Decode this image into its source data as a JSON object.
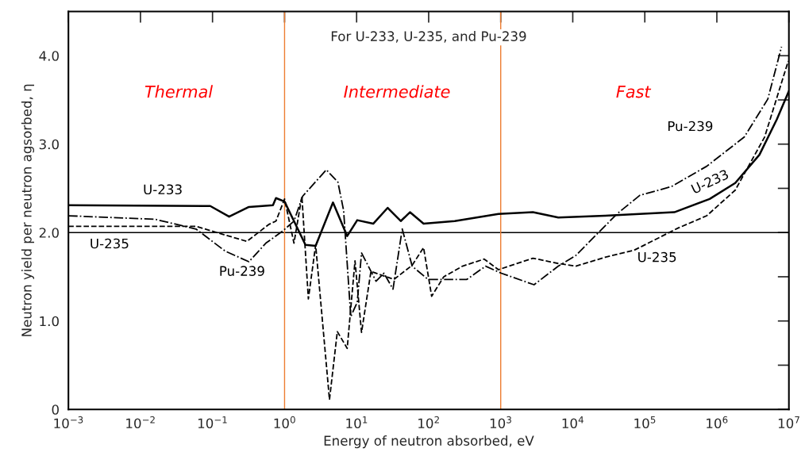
{
  "chart_data": {
    "type": "line",
    "title": "For U-233, U-235, and Pu-239",
    "xlabel": "Energy of neutron absorbed, eV",
    "ylabel": "Neutron yield per neutron agsorbed, η",
    "log": "x",
    "xlim": [
      0.001,
      10000000
    ],
    "ylim": [
      0,
      4.5
    ],
    "xticks": [
      {
        "value": 0.001,
        "label": "10$^{−3}$"
      },
      {
        "value": 0.01,
        "label": "10$^{−2}$"
      },
      {
        "value": 0.1,
        "label": "10$^{−1}$"
      },
      {
        "value": 1,
        "label": "10$^{0}$"
      },
      {
        "value": 10,
        "label": "10$^{1}$"
      },
      {
        "value": 100,
        "label": "10$^{2}$"
      },
      {
        "value": 1000,
        "label": "10$^{3}$"
      },
      {
        "value": 10000,
        "label": "10$^{4}$"
      },
      {
        "value": 100000,
        "label": "10$^{5}$"
      },
      {
        "value": 1000000,
        "label": "10$^{6}$"
      },
      {
        "value": 10000000,
        "label": "10$^{7}$"
      }
    ],
    "yticks": [
      0,
      {
        "value": 0.5,
        "label": null
      },
      {
        "value": 1.0,
        "label": "1.0"
      },
      {
        "value": 1.5,
        "label": null
      },
      {
        "value": 2.0,
        "label": "2.0"
      },
      {
        "value": 2.5,
        "label": null
      },
      {
        "value": 3.0,
        "label": "3.0"
      },
      {
        "value": 3.5,
        "label": null
      },
      {
        "value": 4.0,
        "label": "4.0"
      }
    ],
    "grid": false,
    "legend": false,
    "series": [
      {
        "color": "#000000",
        "line_style": "solid",
        "x": [
          0.001,
          0.093,
          0.17,
          0.32,
          0.69,
          0.76,
          1,
          1.95,
          2.7,
          4.7,
          7.4,
          10.2,
          17,
          27,
          41,
          55,
          85,
          230,
          930,
          2800,
          6300,
          28000,
          257000,
          794000,
          1800000,
          3900000,
          6800000,
          10000000
        ],
        "values": [
          2.31,
          2.3,
          2.18,
          2.29,
          2.31,
          2.39,
          2.35,
          1.86,
          1.85,
          2.34,
          1.96,
          2.14,
          2.1,
          2.28,
          2.13,
          2.23,
          2.1,
          2.13,
          2.21,
          2.23,
          2.17,
          2.19,
          2.23,
          2.38,
          2.56,
          2.88,
          3.28,
          3.6
        ]
      },
      {
        "color": "#000000",
        "line_style": "dashed",
        "x": [
          0.001,
          0.059,
          0.3,
          0.6,
          0.76,
          1,
          1.35,
          1.74,
          2.14,
          2.7,
          4.2,
          5.4,
          7.4,
          9.5,
          11.7,
          15.8,
          33,
          59,
          85,
          110,
          162,
          295,
          590,
          930,
          2800,
          6300,
          11000,
          28000,
          71000,
          288000,
          724000,
          1800000,
          4600000,
          9800000
        ],
        "values": [
          2.07,
          2.07,
          1.9,
          2.09,
          2.13,
          2.38,
          1.88,
          2.41,
          1.25,
          1.86,
          0.11,
          0.88,
          0.69,
          1.68,
          0.87,
          1.56,
          1.47,
          1.63,
          1.83,
          1.28,
          1.5,
          1.62,
          1.7,
          1.58,
          1.71,
          1.65,
          1.62,
          1.72,
          1.8,
          2.05,
          2.19,
          2.48,
          3.08,
          3.94
        ]
      },
      {
        "color": "#000000",
        "line_style": "dashdot",
        "x": [
          0.001,
          0.016,
          0.059,
          0.15,
          0.32,
          0.55,
          0.95,
          1.35,
          1.78,
          3.8,
          5.5,
          6.6,
          8.3,
          10.2,
          11.7,
          18.6,
          24,
          32,
          43,
          59,
          98,
          162,
          339,
          617,
          1020,
          2900,
          6300,
          11000,
          41000,
          85000,
          234000,
          724000,
          2400000,
          5100000,
          7900000
        ],
        "values": [
          2.19,
          2.15,
          2.04,
          1.79,
          1.67,
          1.88,
          2.02,
          2.13,
          2.41,
          2.71,
          2.57,
          2.25,
          1.05,
          1.21,
          1.77,
          1.45,
          1.54,
          1.36,
          2.04,
          1.62,
          1.47,
          1.47,
          1.47,
          1.62,
          1.54,
          1.41,
          1.62,
          1.74,
          2.21,
          2.42,
          2.52,
          2.75,
          3.08,
          3.51,
          4.1
        ]
      }
    ],
    "ref_lines": [
      {
        "axis": "y",
        "value": 2.0,
        "color": "#000000"
      },
      {
        "axis": "x",
        "value": 1,
        "color": "#ed7d31"
      },
      {
        "axis": "x",
        "value": 1000,
        "color": "#ed7d31"
      }
    ],
    "annotations": [
      "Thermal",
      "Intermediate",
      "Fast",
      "U-233",
      "U-235",
      "Pu-239",
      "Pu-239",
      "U-233",
      "U-235"
    ]
  }
}
